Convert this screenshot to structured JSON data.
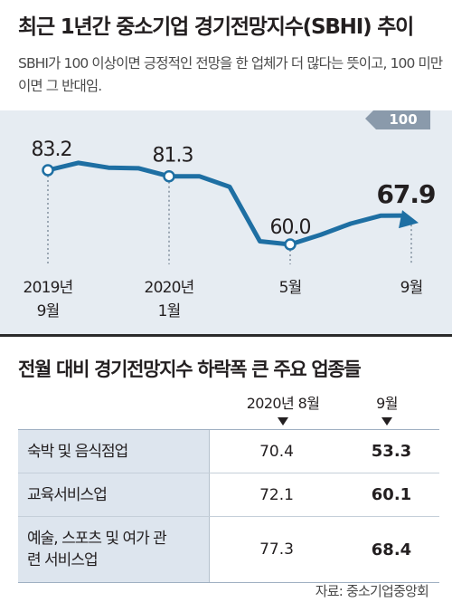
{
  "header": {
    "title": "최근 1년간 중소기업 경기전망지수(SBHI) 추이",
    "subtitle": "SBHI가 100 이상이면 긍정적인 전망을 한 업체가 더 많다는 뜻이고, 100 미만이면 그 반대임."
  },
  "chart_data": {
    "type": "line",
    "reference_label": "100",
    "series": [
      {
        "values": [
          83.2,
          85.5,
          84.0,
          83.8,
          81.3,
          81.3,
          78.0,
          61.0,
          60.0,
          63.0,
          66.5,
          69.0,
          67.9
        ]
      }
    ],
    "labeled_points": [
      {
        "index": 0,
        "value": "83.2"
      },
      {
        "index": 4,
        "value": "81.3"
      },
      {
        "index": 8,
        "value": "60.0"
      },
      {
        "index": 12,
        "value": "67.9"
      }
    ],
    "x_labels": [
      {
        "index": 0,
        "lines": [
          "2019년",
          "9월"
        ]
      },
      {
        "index": 4,
        "lines": [
          "2020년",
          "1월"
        ]
      },
      {
        "index": 8,
        "lines": [
          "5월"
        ]
      },
      {
        "index": 12,
        "lines": [
          "9월"
        ]
      }
    ],
    "line_color": "#1e6fa3",
    "reference_color": "#8a9aab"
  },
  "table": {
    "title": "전월 대비 경기전망지수 하락폭 큰 주요 업종들",
    "col1_header": "2020년 8월",
    "col2_header": "9월",
    "rows": [
      {
        "label": "숙박 및 음식점업",
        "aug": "70.4",
        "sep": "53.3"
      },
      {
        "label": "교육서비스업",
        "aug": "72.1",
        "sep": "60.1"
      },
      {
        "label": "예술, 스포츠 및 여가 관련 서비스업",
        "aug": "77.3",
        "sep": "68.4"
      }
    ]
  },
  "source": "자료: 중소기업중앙회"
}
